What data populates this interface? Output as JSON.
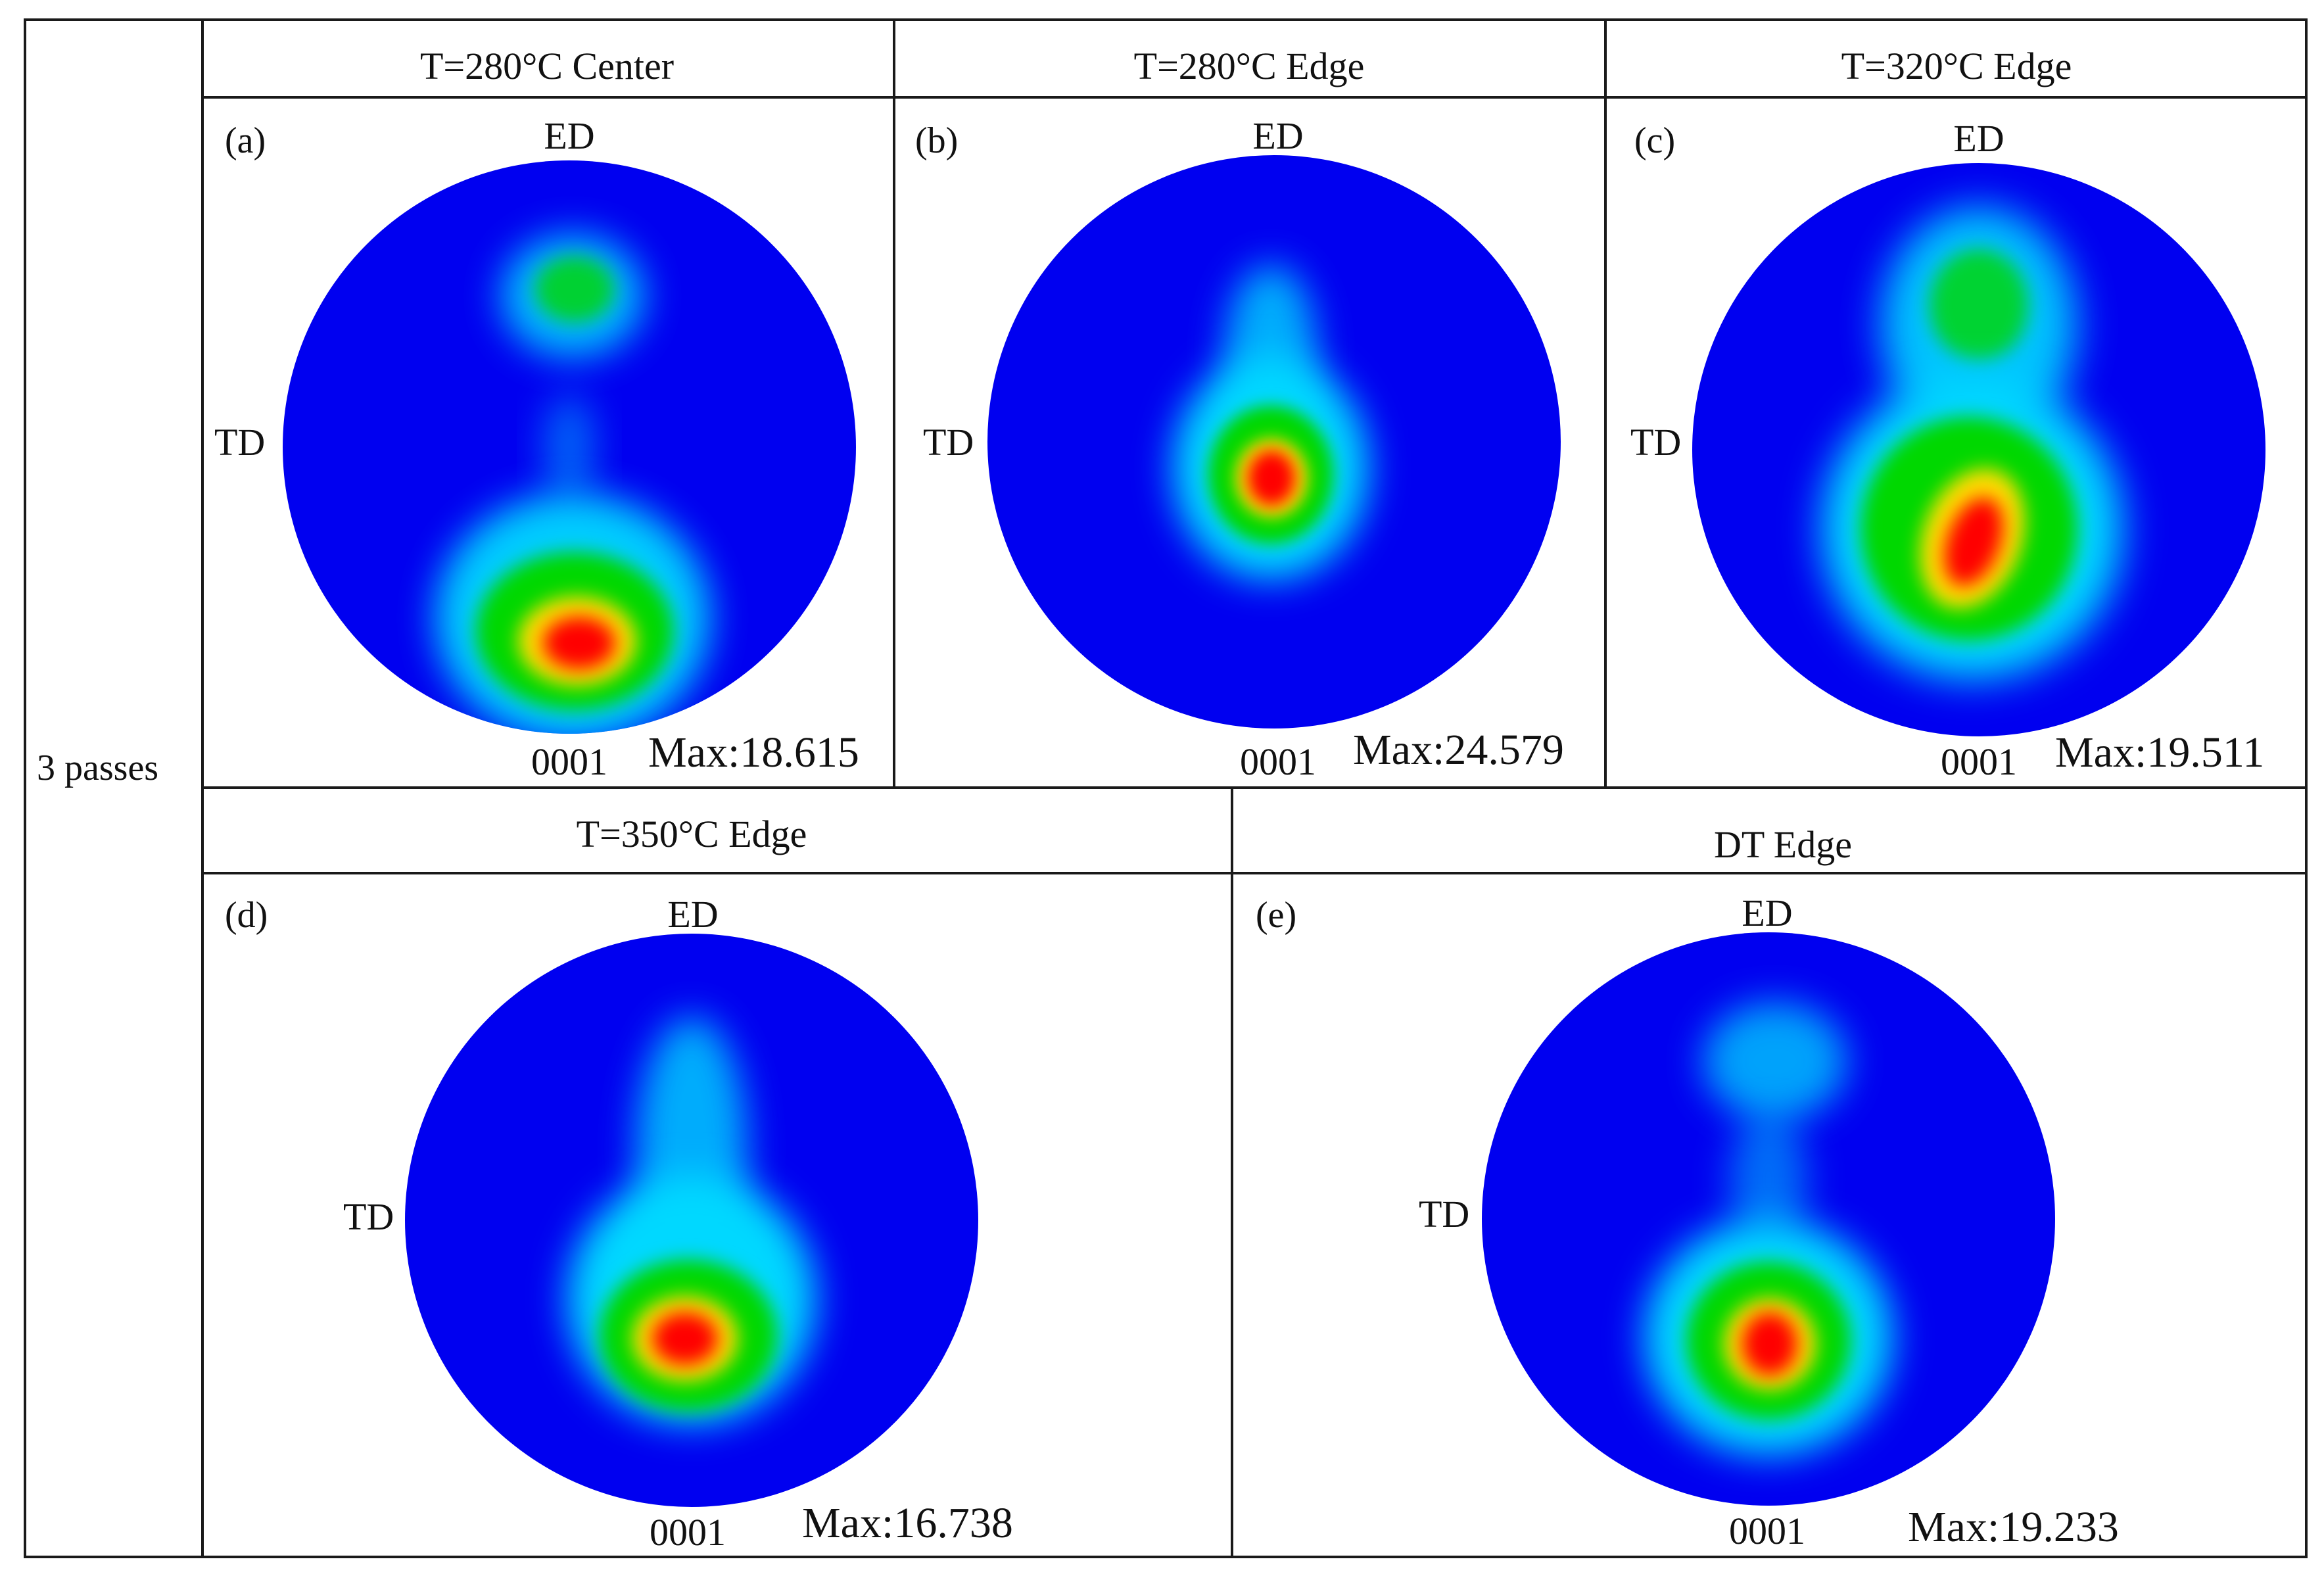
{
  "row_label": "3 passes",
  "panels": [
    {
      "id": "a",
      "header": "T=280°C Center",
      "label": "(a)",
      "top_label": "ED",
      "left_label": "TD",
      "bottom_label": "0001",
      "max_text": "Max:18.615"
    },
    {
      "id": "b",
      "header": "T=280°C Edge",
      "label": "(b)",
      "top_label": "ED",
      "left_label": "TD",
      "bottom_label": "0001",
      "max_text": "Max:24.579"
    },
    {
      "id": "c",
      "header": "T=320°C Edge",
      "label": "(c)",
      "top_label": "ED",
      "left_label": "TD",
      "bottom_label": "0001",
      "max_text": "Max:19.511"
    },
    {
      "id": "d",
      "header": "T=350°C Edge",
      "label": "(d)",
      "top_label": "ED",
      "left_label": "TD",
      "bottom_label": "0001",
      "max_text": "Max:16.738"
    },
    {
      "id": "e",
      "header": "DT Edge",
      "label": "(e)",
      "top_label": "ED",
      "left_label": "TD",
      "bottom_label": "0001",
      "max_text": "Max:19.233"
    }
  ],
  "colors": {
    "background": "#0000f0",
    "low": "#00d8ff",
    "mid": "#00d800",
    "high": "#ffdd00",
    "peak": "#ff0000"
  }
}
